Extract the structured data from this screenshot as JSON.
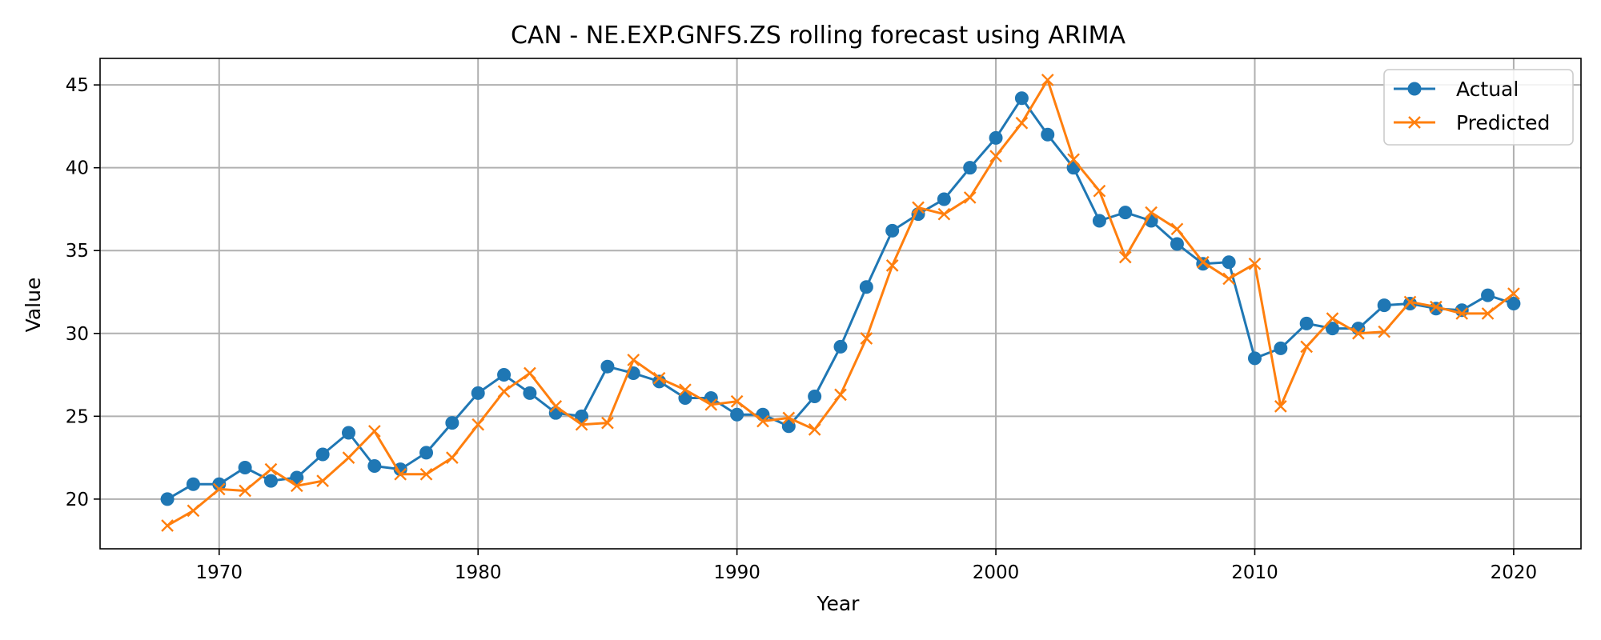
{
  "chart_data": {
    "type": "line",
    "title": "CAN - NE.EXP.GNFS.ZS rolling forecast using ARIMA",
    "xlabel": "Year",
    "ylabel": "Value",
    "xlim": [
      1965.4,
      2022.6
    ],
    "ylim": [
      17.0,
      46.6
    ],
    "xticks": [
      1970,
      1980,
      1990,
      2000,
      2010,
      2020
    ],
    "yticks": [
      20,
      25,
      30,
      35,
      40,
      45
    ],
    "grid": true,
    "legend_position": "top-right",
    "x": [
      1968,
      1969,
      1970,
      1971,
      1972,
      1973,
      1974,
      1975,
      1976,
      1977,
      1978,
      1979,
      1980,
      1981,
      1982,
      1983,
      1984,
      1985,
      1986,
      1987,
      1988,
      1989,
      1990,
      1991,
      1992,
      1993,
      1994,
      1995,
      1996,
      1997,
      1998,
      1999,
      2000,
      2001,
      2002,
      2003,
      2004,
      2005,
      2006,
      2007,
      2008,
      2009,
      2010,
      2011,
      2012,
      2013,
      2014,
      2015,
      2016,
      2017,
      2018,
      2019,
      2020
    ],
    "series": [
      {
        "name": "Actual",
        "color": "#1f77b4",
        "marker": "circle",
        "values": [
          20.0,
          20.9,
          20.9,
          21.9,
          21.1,
          21.3,
          22.7,
          24.0,
          22.0,
          21.8,
          22.8,
          24.6,
          26.4,
          27.5,
          26.4,
          25.2,
          25.0,
          28.0,
          27.6,
          27.1,
          26.1,
          26.1,
          25.1,
          25.1,
          24.4,
          26.2,
          29.2,
          32.8,
          36.2,
          37.2,
          38.1,
          40.0,
          41.8,
          44.2,
          42.0,
          40.0,
          36.8,
          37.3,
          36.8,
          35.4,
          34.2,
          34.3,
          28.5,
          29.1,
          30.6,
          30.3,
          30.3,
          31.7,
          31.8,
          31.5,
          31.4,
          32.3,
          31.8
        ]
      },
      {
        "name": "Predicted",
        "color": "#ff7f0e",
        "marker": "x",
        "values": [
          18.4,
          19.3,
          20.6,
          20.5,
          21.8,
          20.8,
          21.1,
          22.5,
          24.1,
          21.5,
          21.5,
          22.5,
          24.5,
          26.5,
          27.6,
          25.6,
          24.5,
          24.6,
          28.4,
          27.3,
          26.6,
          25.7,
          25.9,
          24.7,
          24.9,
          24.2,
          26.3,
          29.7,
          34.1,
          37.6,
          37.2,
          38.2,
          40.7,
          42.7,
          45.3,
          40.5,
          38.6,
          34.6,
          37.3,
          36.3,
          34.3,
          33.3,
          34.2,
          25.6,
          29.2,
          30.9,
          30.0,
          30.1,
          31.9,
          31.6,
          31.2,
          31.2,
          32.4
        ]
      }
    ]
  }
}
